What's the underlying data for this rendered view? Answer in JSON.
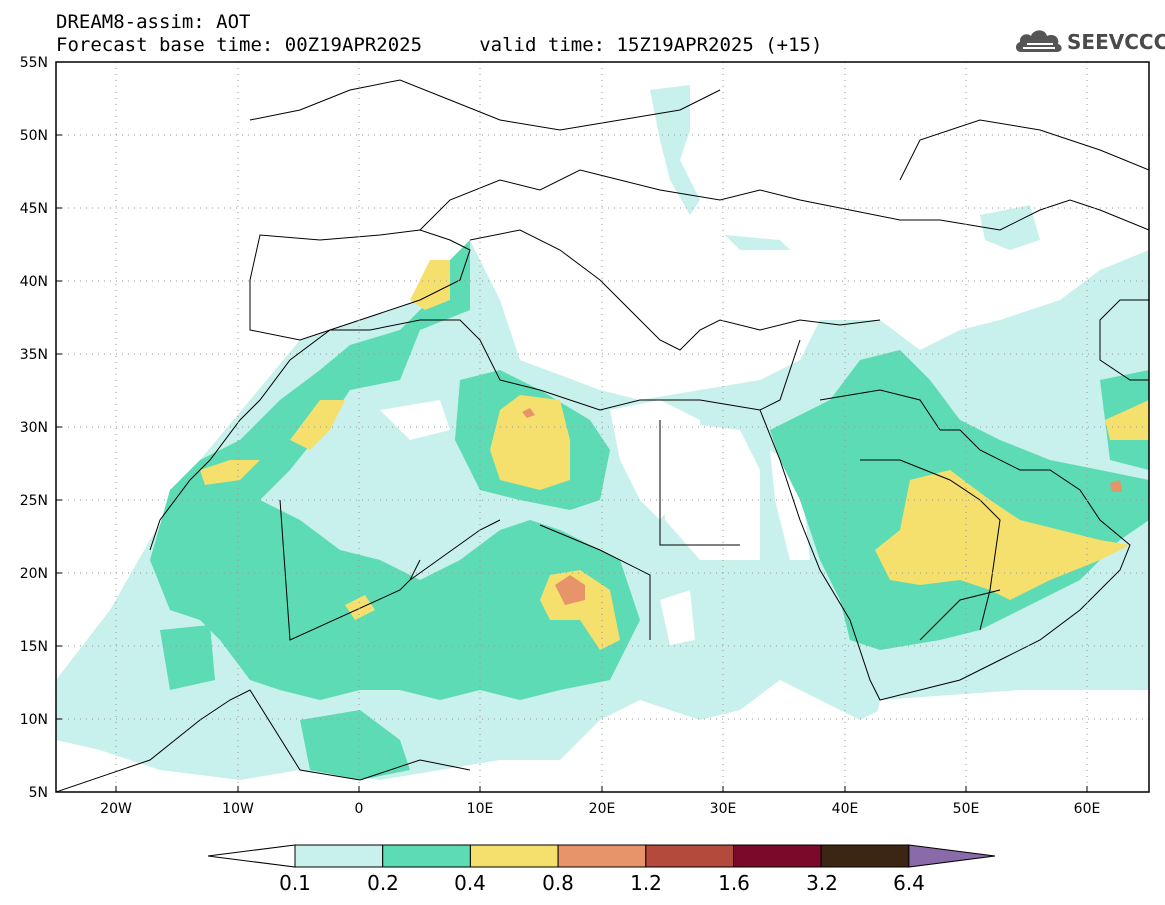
{
  "header": {
    "line1": "DREAM8-assim: AOT",
    "line2": "Forecast base time: 00Z19APR2025     valid time: 15Z19APR2025 (+15)",
    "logo_text": "SEEVCCC",
    "logo_icon": "cloud-icon"
  },
  "map": {
    "lon_range": [
      -25,
      65
    ],
    "lat_range": [
      5,
      55
    ],
    "lat_ticks": [
      "5N",
      "10N",
      "15N",
      "20N",
      "25N",
      "30N",
      "35N",
      "40N",
      "45N",
      "50N",
      "55N"
    ],
    "lon_ticks": [
      "20W",
      "10W",
      "0",
      "10E",
      "20E",
      "30E",
      "40E",
      "50E",
      "60E"
    ],
    "grid": "dotted"
  },
  "colorbar": {
    "labels": [
      "0.1",
      "0.2",
      "0.4",
      "0.8",
      "1.2",
      "1.6",
      "3.2",
      "6.4"
    ],
    "colors": [
      "#ffffff",
      "#c8f0ec",
      "#5cdbb5",
      "#f5e06e",
      "#e8946a",
      "#b34a3c",
      "#7b0a2a",
      "#3b2614",
      "#8a6aa8"
    ]
  }
}
